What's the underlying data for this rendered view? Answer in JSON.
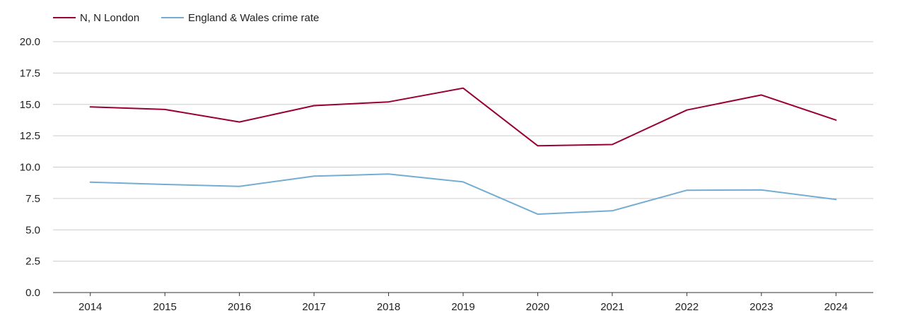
{
  "chart_data": {
    "type": "line",
    "title": "",
    "xlabel": "",
    "ylabel": "",
    "x": [
      "2014",
      "2015",
      "2016",
      "2017",
      "2018",
      "2019",
      "2020",
      "2021",
      "2022",
      "2023",
      "2024"
    ],
    "ylim": [
      0,
      20
    ],
    "yticks": [
      "0.0",
      "2.5",
      "5.0",
      "7.5",
      "10.0",
      "12.5",
      "15.0",
      "17.5",
      "20.0"
    ],
    "grid": true,
    "legend_position": "top-left",
    "series": [
      {
        "name": "N, N London",
        "color": "#990033",
        "values": [
          14.8,
          14.6,
          13.6,
          14.9,
          15.2,
          16.3,
          11.7,
          11.8,
          14.55,
          15.75,
          13.75
        ]
      },
      {
        "name": "England & Wales crime rate",
        "color": "#74add1",
        "values": [
          8.8,
          8.62,
          8.47,
          9.28,
          9.45,
          8.82,
          6.25,
          6.52,
          8.16,
          8.18,
          7.42
        ]
      }
    ]
  }
}
